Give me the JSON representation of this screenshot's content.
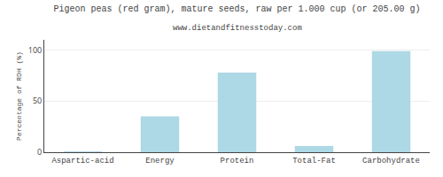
{
  "chart_data": {
    "type": "bar",
    "title": "Pigeon peas (red gram), mature seeds, raw per 1.000 cup (or 205.00 g)",
    "subtitle": "www.dietandfitnesstoday.com",
    "categories": [
      "Aspartic-acid",
      "Energy",
      "Protein",
      "Total-Fat",
      "Carbohydrate"
    ],
    "values": [
      0.5,
      35,
      78,
      6,
      99
    ],
    "color": "#add8e6",
    "ylabel": "Percentage of RDH (%)",
    "ylim": [
      0,
      110
    ],
    "yticks": [
      0,
      50,
      100
    ],
    "grid": true
  }
}
